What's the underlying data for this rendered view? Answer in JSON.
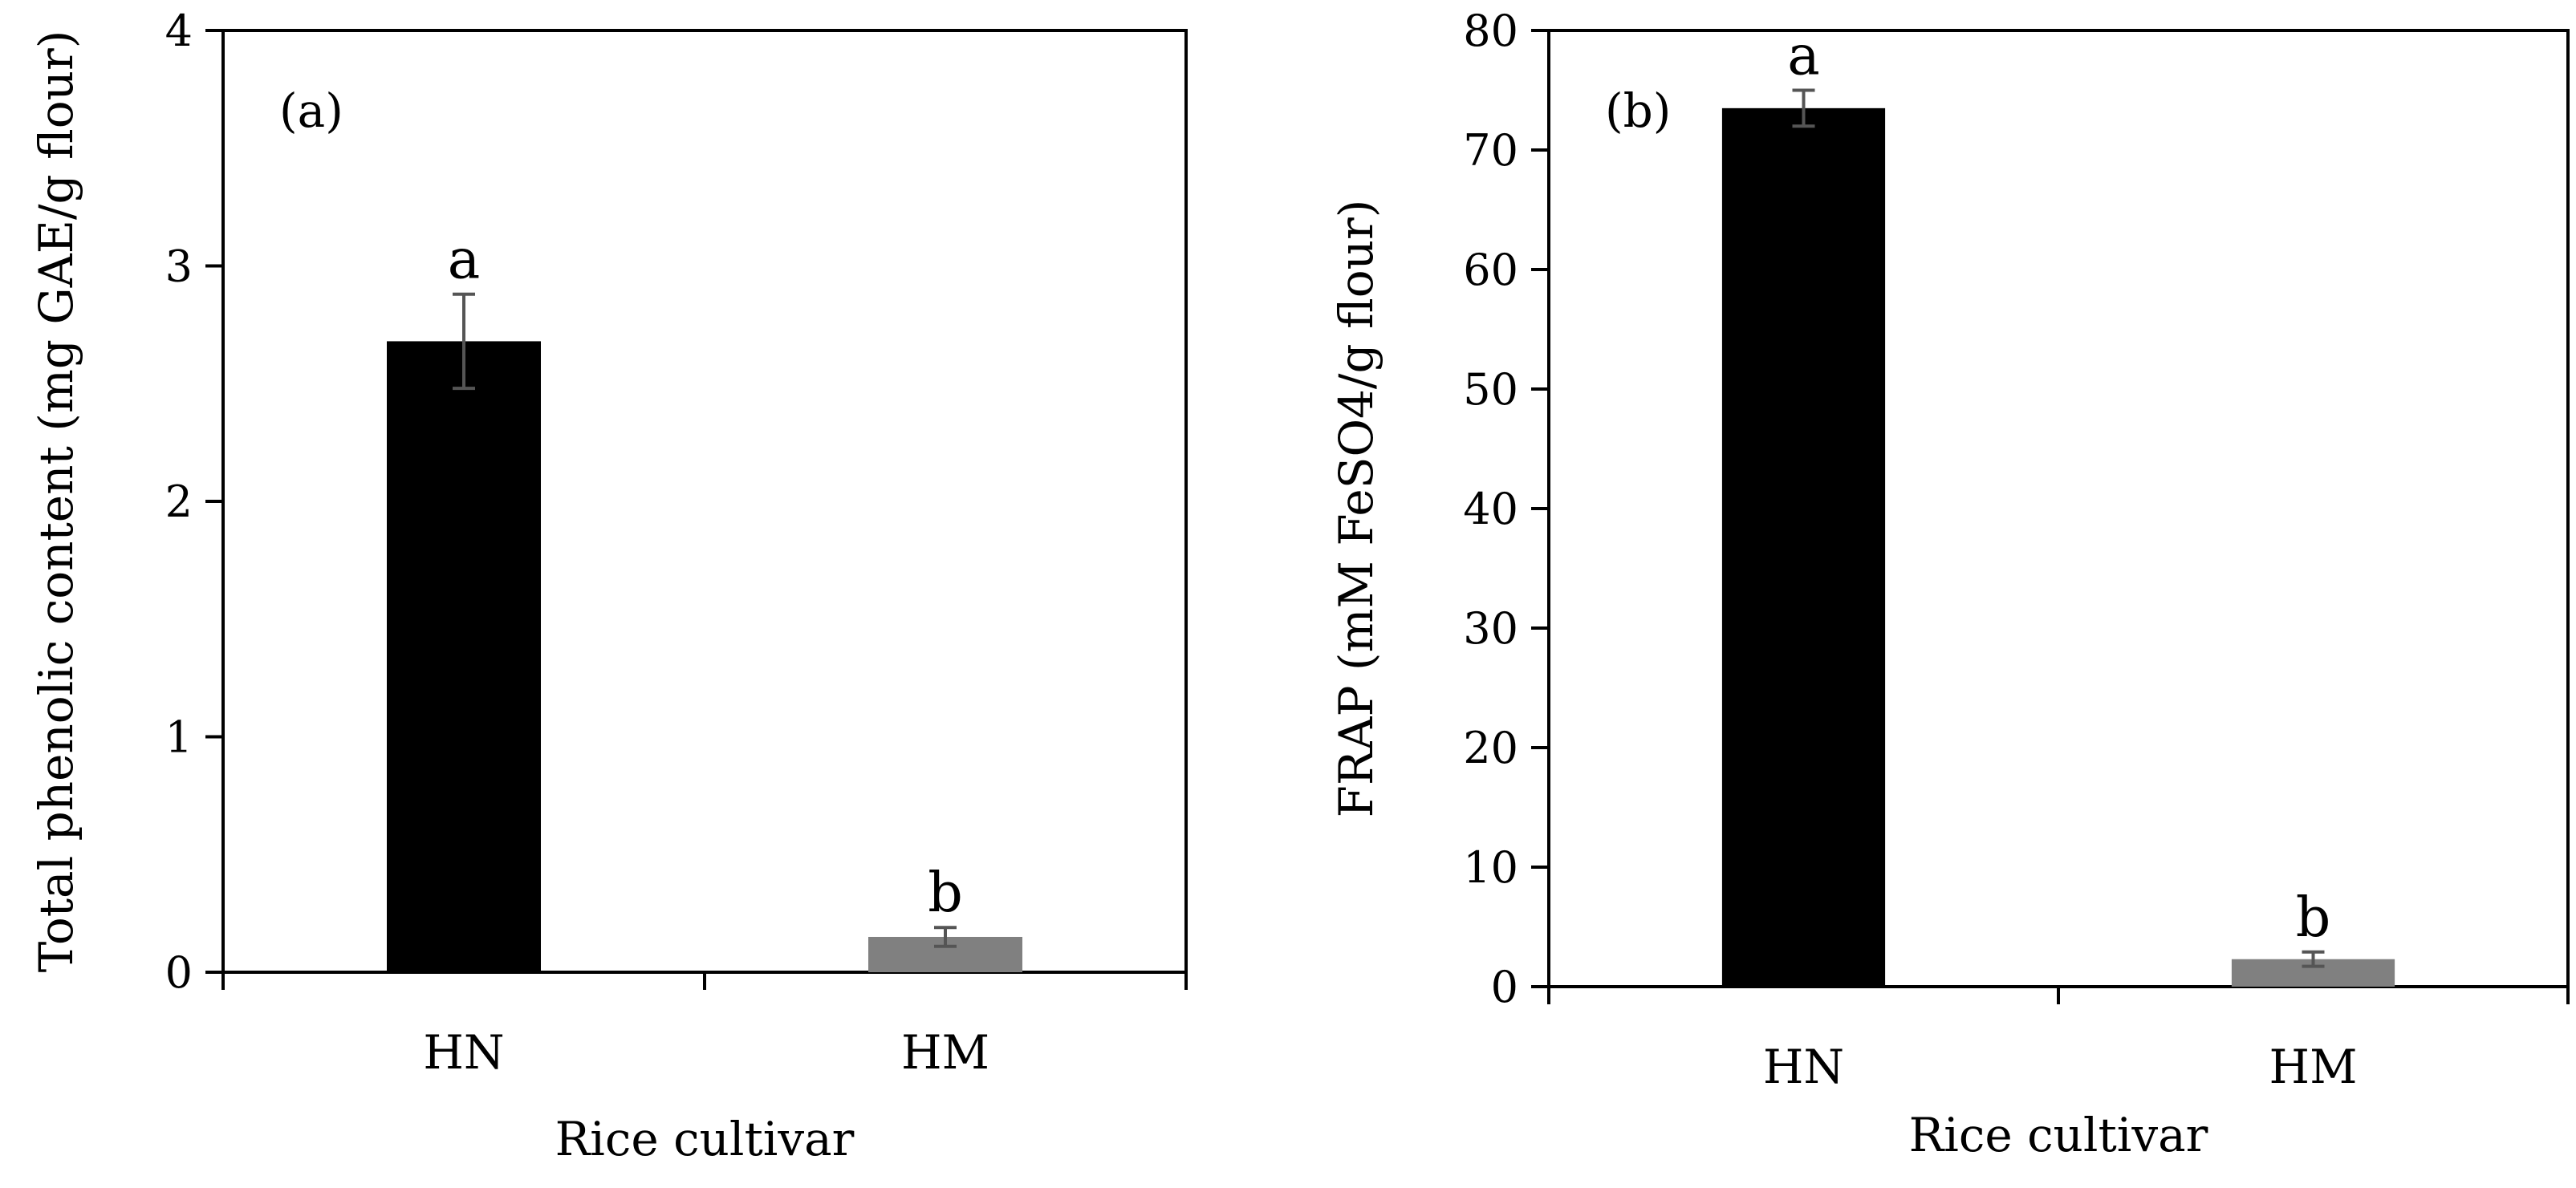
{
  "chart_data": [
    {
      "type": "bar",
      "panel_label": "(a)",
      "title": "",
      "categories": [
        "HN",
        "HM"
      ],
      "values": [
        2.68,
        0.15
      ],
      "errors": [
        0.2,
        0.04
      ],
      "significance": [
        "a",
        "b"
      ],
      "bar_colors": [
        "#000000",
        "#808080"
      ],
      "xlabel": "Rice cultivar",
      "ylabel": "Total phenolic content (mg GAE/g flour)",
      "ylim": [
        0,
        4
      ],
      "yticks": [
        "0",
        "1",
        "2",
        "3",
        "4"
      ],
      "grid": false,
      "legend": "none"
    },
    {
      "type": "bar",
      "panel_label": "(b)",
      "title": "",
      "categories": [
        "HN",
        "HM"
      ],
      "values": [
        73.5,
        2.3
      ],
      "errors": [
        1.5,
        0.6
      ],
      "significance": [
        "a",
        "b"
      ],
      "bar_colors": [
        "#000000",
        "#808080"
      ],
      "xlabel": "Rice cultivar",
      "ylabel": "FRAP (mM FeSO4/g flour)",
      "ylim": [
        0,
        80
      ],
      "yticks": [
        "0",
        "10",
        "20",
        "30",
        "40",
        "50",
        "60",
        "70",
        "80"
      ],
      "grid": false,
      "legend": "none"
    }
  ]
}
